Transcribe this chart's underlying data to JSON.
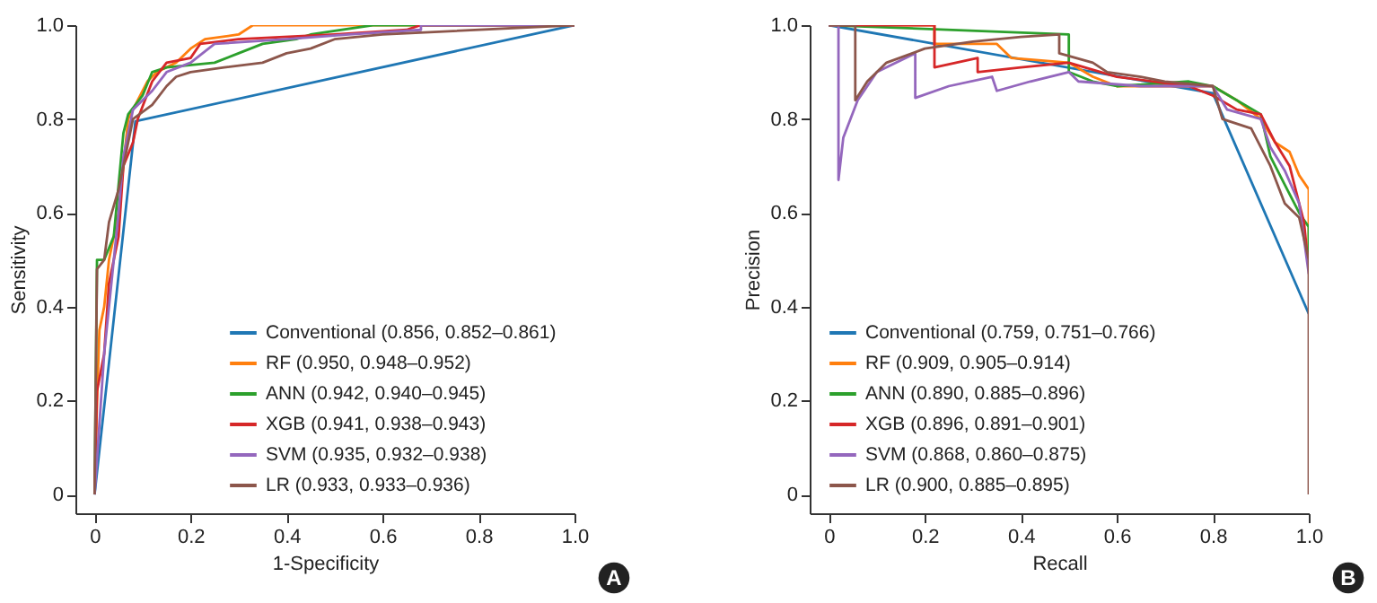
{
  "chart_data": [
    {
      "type": "line",
      "xlabel": "1-Specificity",
      "ylabel": "Sensitivity",
      "annotations": [
        "A"
      ],
      "legend": "bottom right",
      "grid": false,
      "xlim": [
        -0.04,
        1
      ],
      "ylim": [
        -0.04,
        1
      ],
      "xticks": [
        0,
        0.2,
        0.4,
        0.6,
        0.8,
        {
          "value": 1,
          "label": "1.0"
        }
      ],
      "yticks": [
        0,
        0.2,
        0.4,
        0.6,
        0.8,
        {
          "value": 1,
          "label": "1.0"
        }
      ],
      "series": [
        {
          "name": "Conventional (0.856, 0.852–0.861)",
          "color": "#1f77b4",
          "x": [
            0,
            0.085,
            1
          ],
          "values": [
            0,
            0.795,
            1
          ]
        },
        {
          "name": "RF (0.950, 0.948–0.952)",
          "color": "#ff7f0e",
          "x": [
            0,
            0.005,
            0.01,
            0.02,
            0.03,
            0.05,
            0.06,
            0.07,
            0.09,
            0.11,
            0.13,
            0.17,
            0.2,
            0.23,
            0.3,
            0.33,
            1
          ],
          "values": [
            0,
            0.2,
            0.35,
            0.4,
            0.5,
            0.6,
            0.7,
            0.8,
            0.84,
            0.88,
            0.9,
            0.92,
            0.95,
            0.97,
            0.98,
            1,
            1
          ]
        },
        {
          "name": "ANN (0.942, 0.940–0.945)",
          "color": "#2ca02c",
          "x": [
            0,
            0.005,
            0.02,
            0.04,
            0.06,
            0.07,
            0.1,
            0.12,
            0.15,
            0.25,
            0.3,
            0.35,
            0.42,
            0.45,
            0.58,
            1
          ],
          "values": [
            0,
            0.5,
            0.5,
            0.55,
            0.77,
            0.81,
            0.85,
            0.9,
            0.91,
            0.92,
            0.94,
            0.96,
            0.97,
            0.98,
            1,
            1
          ]
        },
        {
          "name": "XGB (0.941, 0.938–0.943)",
          "color": "#d62728",
          "x": [
            0,
            0.005,
            0.02,
            0.03,
            0.05,
            0.06,
            0.08,
            0.09,
            0.12,
            0.15,
            0.2,
            0.22,
            0.3,
            0.5,
            0.65,
            0.68,
            1
          ],
          "values": [
            0,
            0.22,
            0.3,
            0.45,
            0.55,
            0.7,
            0.75,
            0.8,
            0.88,
            0.92,
            0.93,
            0.96,
            0.97,
            0.98,
            0.99,
            1,
            1
          ]
        },
        {
          "name": "SVM (0.935, 0.932–0.938)",
          "color": "#9467bd",
          "x": [
            0,
            0.01,
            0.02,
            0.04,
            0.05,
            0.06,
            0.08,
            0.12,
            0.15,
            0.2,
            0.25,
            0.4,
            0.53,
            0.68,
            0.68,
            1
          ],
          "values": [
            0,
            0.15,
            0.3,
            0.5,
            0.6,
            0.72,
            0.82,
            0.86,
            0.9,
            0.92,
            0.96,
            0.97,
            0.98,
            0.99,
            1,
            1
          ]
        },
        {
          "name": "LR (0.933, 0.933–0.936)",
          "color": "#8c564b",
          "x": [
            0,
            0.005,
            0.02,
            0.03,
            0.05,
            0.06,
            0.08,
            0.12,
            0.15,
            0.17,
            0.2,
            0.27,
            0.35,
            0.4,
            0.45,
            0.5,
            0.6,
            1
          ],
          "values": [
            0,
            0.48,
            0.5,
            0.58,
            0.65,
            0.7,
            0.8,
            0.83,
            0.87,
            0.89,
            0.9,
            0.91,
            0.92,
            0.94,
            0.95,
            0.97,
            0.98,
            1
          ]
        }
      ]
    },
    {
      "type": "line",
      "xlabel": "Recall",
      "ylabel": "Precision",
      "annotations": [
        "B"
      ],
      "legend": "bottom left",
      "grid": false,
      "xlim": [
        -0.04,
        1
      ],
      "ylim": [
        -0.04,
        1
      ],
      "xticks": [
        0,
        0.2,
        0.4,
        0.6,
        0.8,
        {
          "value": 1,
          "label": "1.0"
        }
      ],
      "yticks": [
        0,
        0.2,
        0.4,
        0.6,
        0.8,
        {
          "value": 1,
          "label": "1.0"
        }
      ],
      "series": [
        {
          "name": "Conventional (0.759, 0.751–0.766)",
          "color": "#1f77b4",
          "x": [
            0,
            0.8,
            1
          ],
          "values": [
            1,
            0.855,
            0.385
          ]
        },
        {
          "name": "RF (0.909, 0.905–0.914)",
          "color": "#ff7f0e",
          "x": [
            0,
            0.22,
            0.22,
            0.35,
            0.38,
            0.5,
            0.55,
            0.6,
            0.7,
            0.8,
            0.85,
            0.9,
            0.93,
            0.96,
            0.98,
            1,
            1
          ],
          "values": [
            1,
            1,
            0.96,
            0.96,
            0.93,
            0.92,
            0.89,
            0.87,
            0.87,
            0.87,
            0.84,
            0.8,
            0.75,
            0.73,
            0.68,
            0.65,
            0.5
          ]
        },
        {
          "name": "ANN (0.890, 0.885–0.896)",
          "color": "#2ca02c",
          "x": [
            0,
            0.5,
            0.5,
            0.55,
            0.6,
            0.75,
            0.8,
            0.85,
            0.9,
            0.92,
            0.95,
            0.98,
            1,
            1
          ],
          "values": [
            1,
            0.98,
            0.9,
            0.88,
            0.87,
            0.88,
            0.87,
            0.84,
            0.81,
            0.72,
            0.66,
            0.6,
            0.57,
            0.5
          ]
        },
        {
          "name": "XGB (0.896, 0.891–0.901)",
          "color": "#d62728",
          "x": [
            0,
            0.22,
            0.22,
            0.31,
            0.31,
            0.4,
            0.5,
            0.6,
            0.75,
            0.8,
            0.85,
            0.9,
            0.93,
            0.96,
            0.99,
            1
          ],
          "values": [
            1,
            1,
            0.91,
            0.93,
            0.9,
            0.91,
            0.92,
            0.89,
            0.87,
            0.85,
            0.82,
            0.81,
            0.75,
            0.7,
            0.58,
            0.48
          ]
        },
        {
          "name": "SVM (0.868, 0.860–0.875)",
          "color": "#9467bd",
          "x": [
            0,
            0.02,
            0.02,
            0.03,
            0.06,
            0.1,
            0.18,
            0.18,
            0.25,
            0.34,
            0.35,
            0.42,
            0.5,
            0.52,
            0.65,
            0.8,
            0.83,
            0.9,
            0.92,
            0.95,
            0.98,
            1
          ],
          "values": [
            1,
            1,
            0.67,
            0.76,
            0.84,
            0.9,
            0.94,
            0.845,
            0.87,
            0.89,
            0.86,
            0.88,
            0.9,
            0.88,
            0.87,
            0.87,
            0.82,
            0.8,
            0.74,
            0.69,
            0.62,
            0.47
          ]
        },
        {
          "name": "LR (0.900, 0.885–0.895)",
          "color": "#8c564b",
          "x": [
            0,
            0.055,
            0.055,
            0.08,
            0.12,
            0.2,
            0.3,
            0.4,
            0.48,
            0.48,
            0.55,
            0.58,
            0.65,
            0.7,
            0.8,
            0.82,
            0.88,
            0.92,
            0.95,
            0.98,
            1,
            1
          ],
          "values": [
            1,
            1,
            0.84,
            0.88,
            0.92,
            0.95,
            0.965,
            0.975,
            0.98,
            0.94,
            0.92,
            0.9,
            0.89,
            0.88,
            0.87,
            0.8,
            0.78,
            0.7,
            0.62,
            0.59,
            0.5,
            0
          ]
        }
      ]
    }
  ]
}
